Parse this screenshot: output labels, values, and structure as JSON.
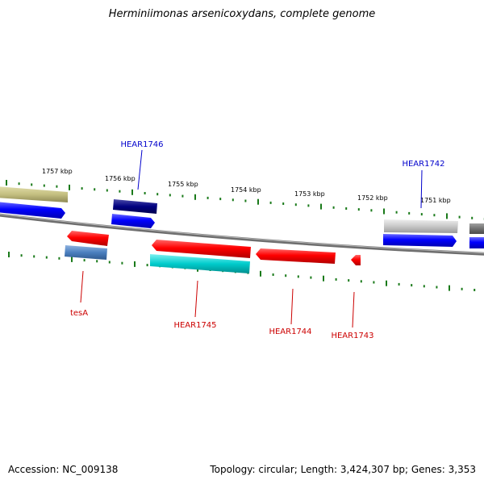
{
  "title": "Herminiimonas arsenicoxydans, complete genome",
  "footer": {
    "accession": "Accession: NC_009138",
    "stats": "Topology: circular; Length: 3,424,307 bp; Genes: 3,353"
  },
  "ruler_labels": [
    "1757 kbp",
    "1756 kbp",
    "1755 kbp",
    "1754 kbp",
    "1753 kbp",
    "1752 kbp",
    "1751 kbp"
  ],
  "gene_labels": {
    "HEAR1746": "HEAR1746",
    "HEAR1742": "HEAR1742",
    "tesA": "tesA",
    "HEAR1745": "HEAR1745",
    "HEAR1744": "HEAR1744",
    "HEAR1743": "HEAR1743"
  },
  "colors": {
    "forward_cds": "#0000ff",
    "reverse_cds": "#ff0000",
    "label_forward": "#0000cc",
    "label_reverse": "#cc0000",
    "ruler_tick": "#1a7a1a",
    "backbone": "#808080",
    "feature_olive": "#c4bf80",
    "feature_navy": "#000080",
    "feature_steelblue": "#4a7fbf",
    "feature_cyan": "#00cccc",
    "feature_lightgray": "#c8c8c8",
    "feature_darkgray": "#707070"
  }
}
